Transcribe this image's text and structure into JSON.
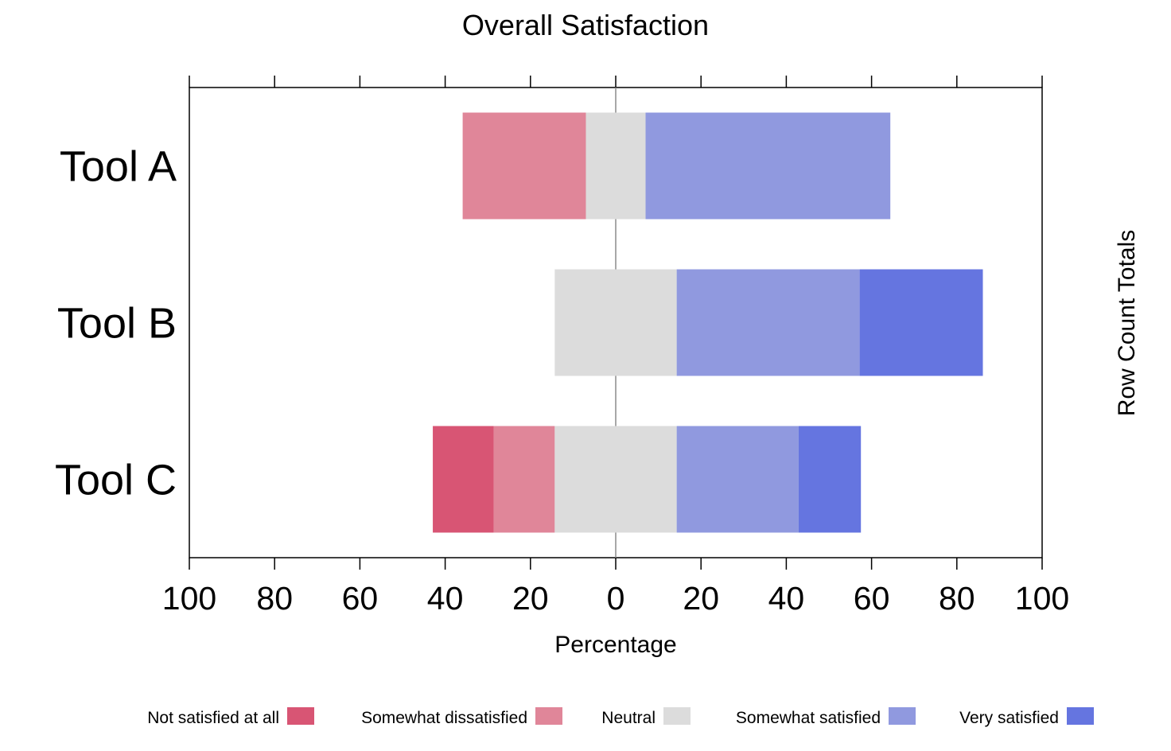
{
  "chart_data": {
    "type": "bar",
    "subtype": "diverging-stacked-horizontal",
    "title": "Overall Satisfaction",
    "xlabel": "Percentage",
    "ylabel_right": "Row Count Totals",
    "xlim": [
      -100,
      100
    ],
    "x_tick_values": [
      -100,
      -80,
      -60,
      -40,
      -20,
      0,
      20,
      40,
      60,
      80,
      100
    ],
    "x_tick_labels": [
      "100",
      "80",
      "60",
      "40",
      "20",
      "0",
      "20",
      "40",
      "60",
      "80",
      "100"
    ],
    "categories": [
      "Tool A",
      "Tool B",
      "Tool C"
    ],
    "series": [
      {
        "name": "Not satisfied at all",
        "color": "#D85574",
        "values": [
          0,
          0,
          14.3
        ]
      },
      {
        "name": "Somewhat dissatisfied",
        "color": "#E08699",
        "values": [
          28.9,
          0,
          14.3
        ]
      },
      {
        "name": "Neutral",
        "color": "#DCDCDC",
        "values": [
          14.0,
          28.6,
          28.6
        ]
      },
      {
        "name": "Somewhat satisfied",
        "color": "#9099DF",
        "values": [
          57.4,
          42.9,
          28.6
        ]
      },
      {
        "name": "Very satisfied",
        "color": "#6575E0",
        "values": [
          0,
          28.9,
          14.6
        ]
      }
    ],
    "neutral_series_index": 2,
    "grid": false,
    "legend_position": "bottom"
  }
}
